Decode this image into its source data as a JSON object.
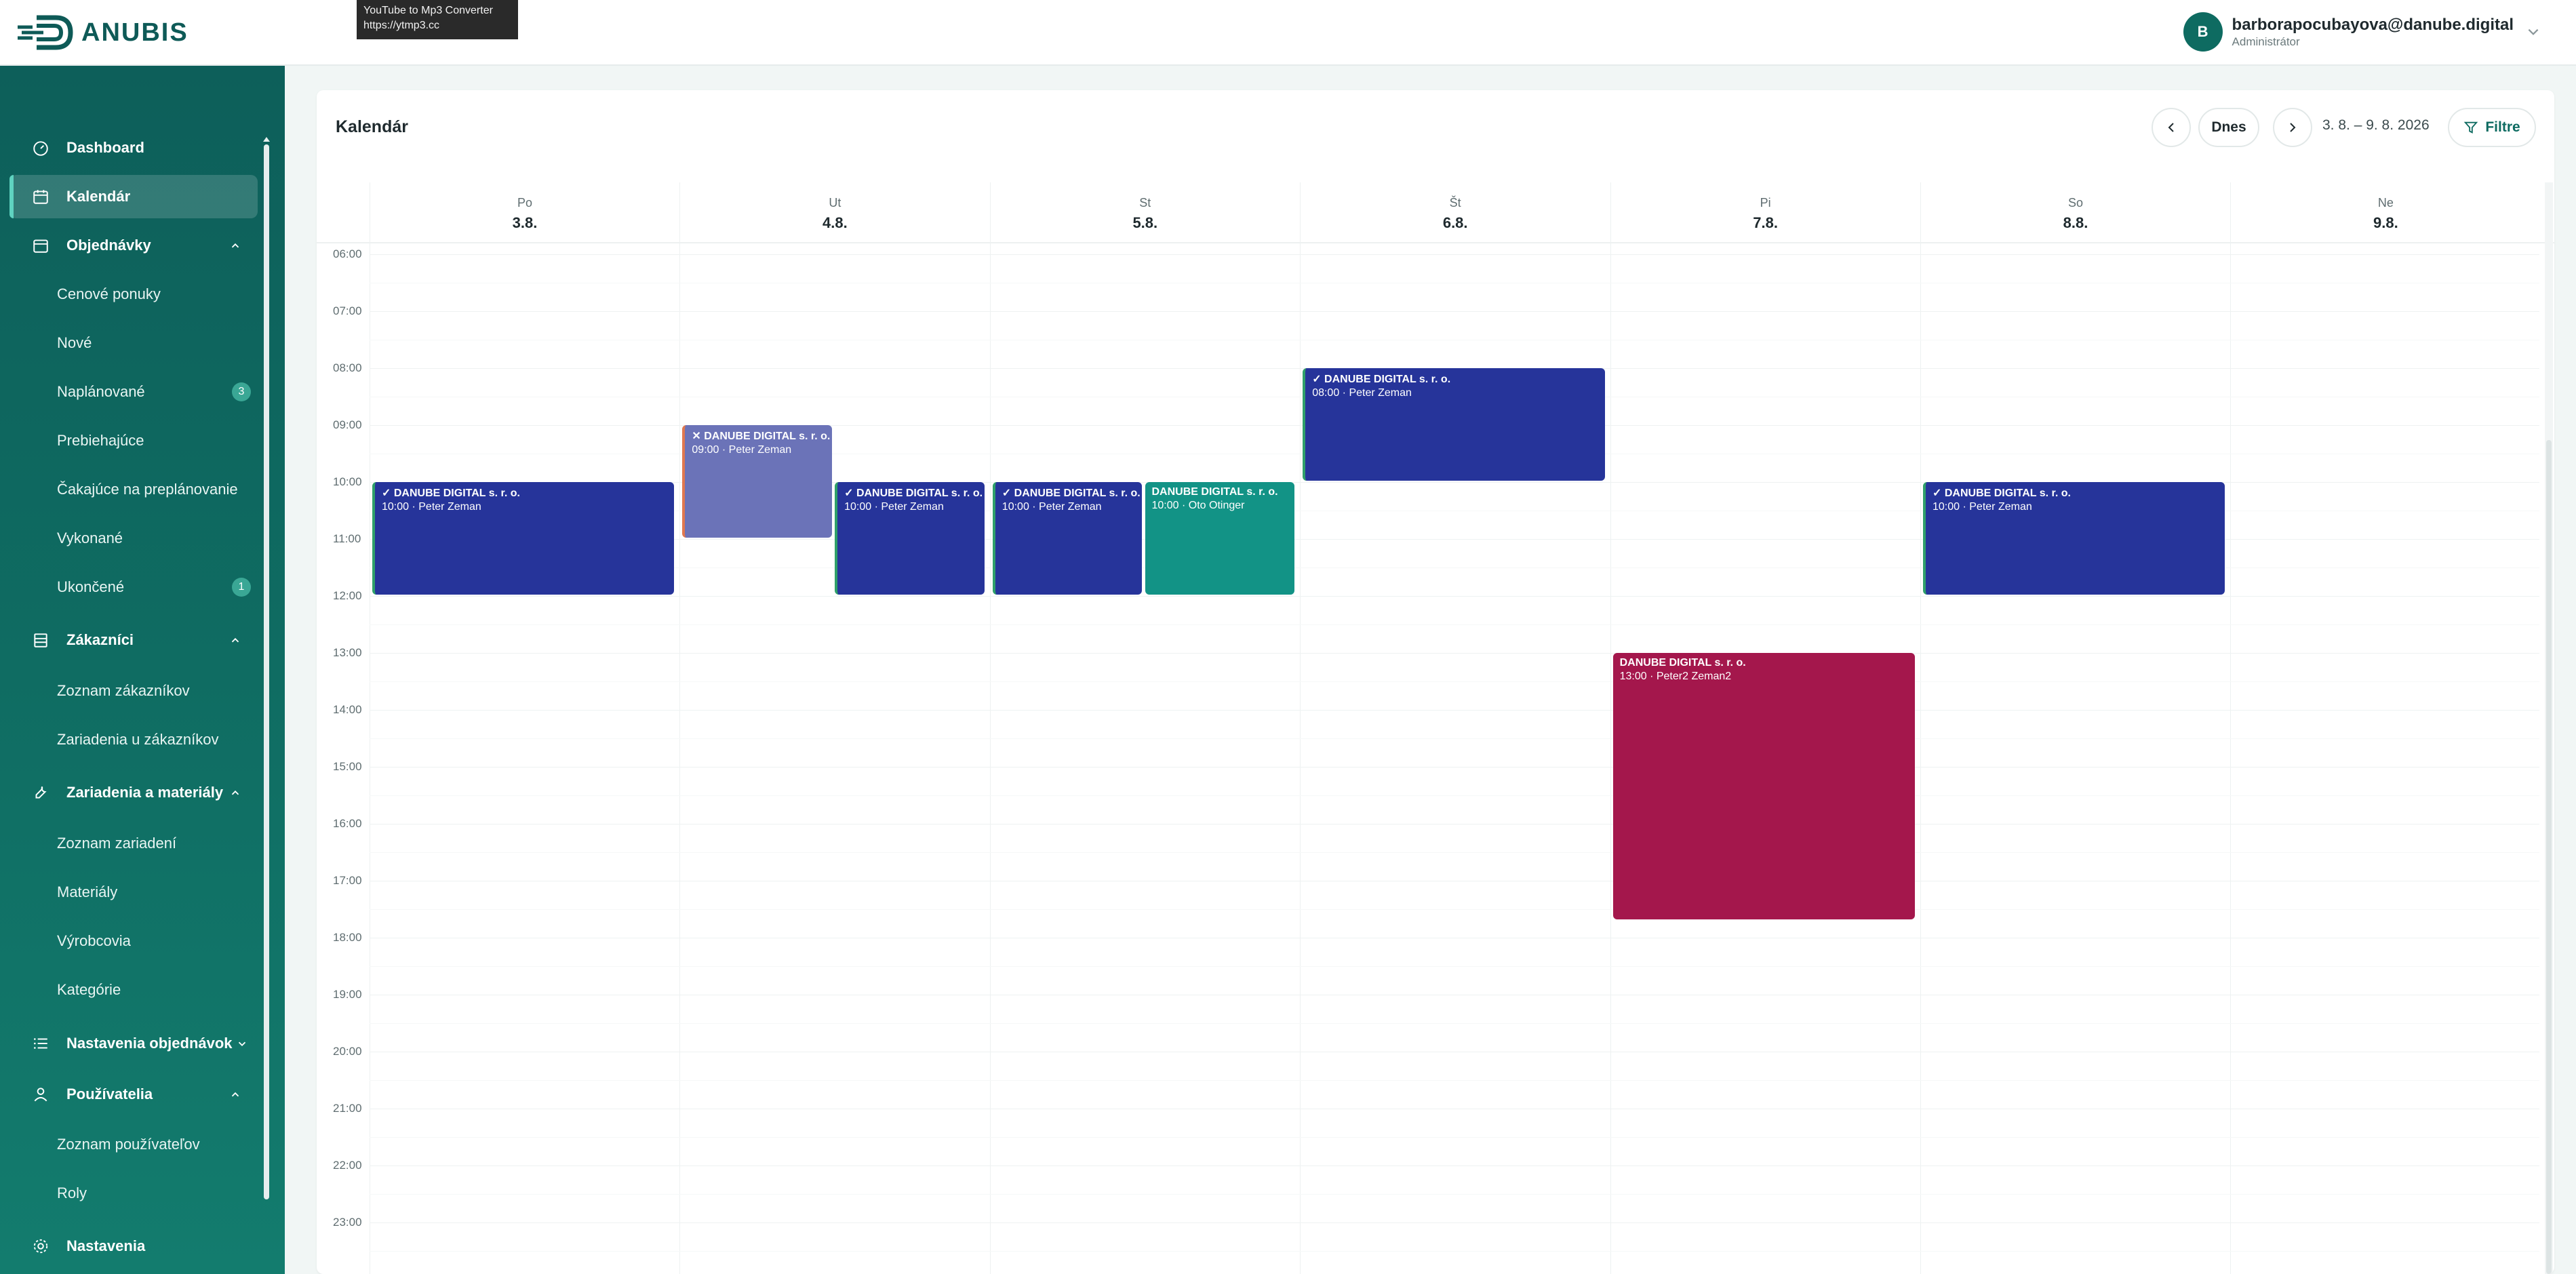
{
  "app": {
    "logo_text": "ANUBIS",
    "tooltip": [
      "YouTube to Mp3 Converter",
      "https://ytmp3.cc"
    ]
  },
  "user": {
    "initial": "B",
    "email": "barborapocubayova@danube.digital",
    "role": "Administrátor"
  },
  "sidebar": {
    "dashboard": "Dashboard",
    "calendar": "Kalendár",
    "orders": {
      "label": "Objednávky",
      "items": [
        {
          "label": "Cenové ponuky",
          "badge": ""
        },
        {
          "label": "Nové",
          "badge": ""
        },
        {
          "label": "Naplánované",
          "badge": "3"
        },
        {
          "label": "Prebiehajúce",
          "badge": ""
        },
        {
          "label": "Čakajúce na preplánovanie",
          "badge": ""
        },
        {
          "label": "Vykonané",
          "badge": ""
        },
        {
          "label": "Ukončené",
          "badge": "1"
        }
      ]
    },
    "customers": {
      "label": "Zákazníci",
      "items": [
        {
          "label": "Zoznam zákazníkov"
        },
        {
          "label": "Zariadenia u zákazníkov"
        }
      ]
    },
    "devices": {
      "label": "Zariadenia a materiály",
      "items": [
        {
          "label": "Zoznam zariadení"
        },
        {
          "label": "Materiály"
        },
        {
          "label": "Výrobcovia"
        },
        {
          "label": "Kategórie"
        }
      ]
    },
    "order_settings": "Nastavenia objednávok",
    "users": {
      "label": "Používatelia",
      "items": [
        {
          "label": "Zoznam používateľov"
        },
        {
          "label": "Roly"
        }
      ]
    },
    "settings": "Nastavenia"
  },
  "calendar": {
    "title": "Kalendár",
    "today_label": "Dnes",
    "range": "3. 8. – 9. 8. 2026",
    "filter_label": "Filtre",
    "days": [
      {
        "name": "Po",
        "date": "3.8."
      },
      {
        "name": "Ut",
        "date": "4.8."
      },
      {
        "name": "St",
        "date": "5.8."
      },
      {
        "name": "Št",
        "date": "6.8."
      },
      {
        "name": "Pi",
        "date": "7.8."
      },
      {
        "name": "So",
        "date": "8.8."
      },
      {
        "name": "Ne",
        "date": "9.8."
      }
    ],
    "hours": [
      "06:00",
      "07:00",
      "08:00",
      "09:00",
      "10:00",
      "11:00",
      "12:00",
      "13:00",
      "14:00",
      "15:00",
      "16:00",
      "17:00",
      "18:00",
      "19:00",
      "20:00",
      "21:00",
      "22:00",
      "23:00"
    ],
    "events": [
      {
        "day": 0,
        "start": 10,
        "end": 12,
        "col": 0,
        "cols": 1,
        "title": "✓ DANUBE DIGITAL s. r. o.",
        "sub": "10:00 · Peter Zeman",
        "style": "blue"
      },
      {
        "day": 1,
        "start": 9,
        "end": 11,
        "col": 0,
        "cols": 2,
        "title": "✕ DANUBE DIGITAL s. r. o.",
        "sub": "09:00 · Peter Zeman",
        "style": "lav"
      },
      {
        "day": 1,
        "start": 10,
        "end": 12,
        "col": 1,
        "cols": 2,
        "title": "✓ DANUBE DIGITAL s. r. o.",
        "sub": "10:00 · Peter Zeman",
        "style": "blue"
      },
      {
        "day": 2,
        "start": 10,
        "end": 12,
        "col": 0,
        "cols": 2,
        "title": "✓ DANUBE DIGITAL s. r. o.",
        "sub": "10:00 · Peter Zeman",
        "style": "blue"
      },
      {
        "day": 2,
        "start": 10,
        "end": 12,
        "col": 1,
        "cols": 2,
        "title": "DANUBE DIGITAL s. r. o.",
        "sub": "10:00 · Oto Otinger",
        "style": "teal"
      },
      {
        "day": 3,
        "start": 8,
        "end": 10,
        "col": 0,
        "cols": 1,
        "title": "✓ DANUBE DIGITAL s. r. o.",
        "sub": "08:00 · Peter Zeman",
        "style": "blue"
      },
      {
        "day": 4,
        "start": 13,
        "end": 17.7,
        "col": 0,
        "cols": 1,
        "title": "DANUBE DIGITAL s. r. o.",
        "sub": "13:00 · Peter2 Zeman2",
        "style": "maroon"
      },
      {
        "day": 5,
        "start": 10,
        "end": 12,
        "col": 0,
        "cols": 1,
        "title": "✓ DANUBE DIGITAL s. r. o.",
        "sub": "10:00 · Peter Zeman",
        "style": "blue"
      }
    ]
  }
}
